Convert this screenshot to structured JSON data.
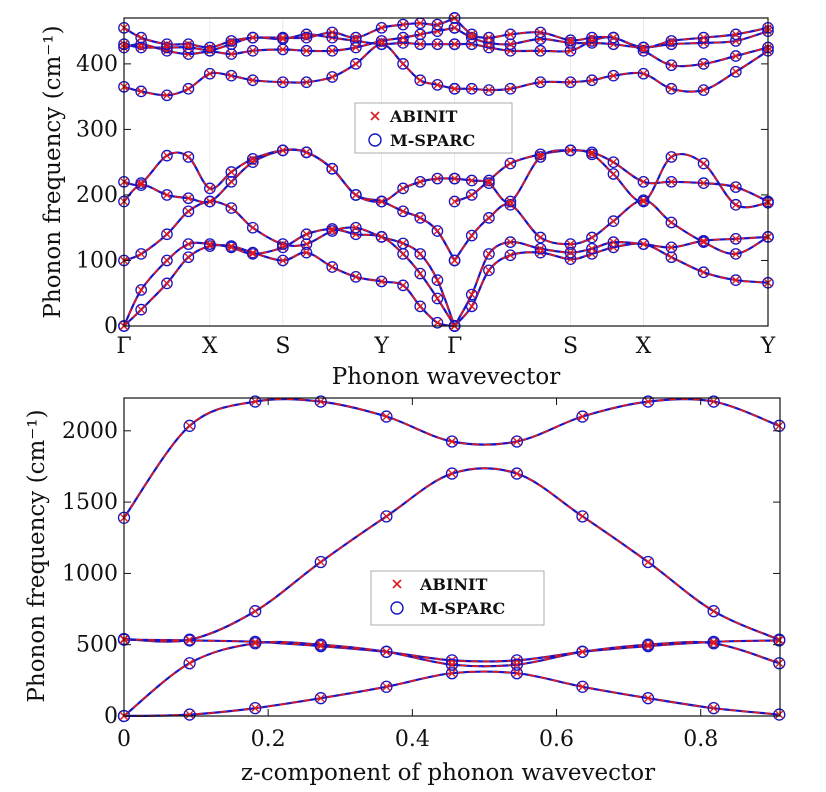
{
  "chart_data": [
    {
      "type": "line",
      "ylabel": "Phonon frequency (cm⁻¹)",
      "xlabel": "Phonon wavevector",
      "ylim": [
        0,
        470
      ],
      "y_ticks": [
        0,
        100,
        200,
        300,
        400
      ],
      "x_tick_labels": [
        "Γ",
        "X",
        "S",
        "Y",
        "Γ",
        "S",
        "X",
        "Y"
      ],
      "x_tick_positions": [
        0,
        0.4,
        0.74,
        1.2,
        1.54,
        2.08,
        2.42,
        3.0
      ],
      "xlim": [
        0,
        3.0
      ],
      "legend": {
        "entries": [
          "ABINIT",
          "M-SPARC"
        ],
        "placement": "center"
      },
      "colors": {
        "abinit": "#e0191b",
        "msparc": "#1414c8"
      },
      "series": [
        {
          "x": [
            0,
            0.08,
            0.2,
            0.3,
            0.4,
            0.5,
            0.6,
            0.74,
            0.85,
            0.97,
            1.08,
            1.2,
            1.3,
            1.38,
            1.46,
            1.54
          ],
          "values": [
            0,
            25,
            65,
            105,
            122,
            122,
            112,
            100,
            112,
            90,
            75,
            68,
            62,
            30,
            5,
            0
          ]
        },
        {
          "x": [
            0,
            0.08,
            0.2,
            0.3,
            0.4,
            0.5,
            0.6,
            0.74,
            0.85,
            0.97,
            1.08,
            1.2,
            1.3,
            1.38,
            1.46,
            1.54
          ],
          "values": [
            0,
            55,
            100,
            125,
            125,
            120,
            110,
            120,
            140,
            148,
            140,
            136,
            110,
            80,
            42,
            0
          ]
        },
        {
          "x": [
            0,
            0.08,
            0.2,
            0.3,
            0.4,
            0.5,
            0.6,
            0.74,
            0.85,
            0.97,
            1.08,
            1.2,
            1.3,
            1.38,
            1.46,
            1.54
          ],
          "values": [
            100,
            110,
            140,
            175,
            190,
            180,
            150,
            125,
            125,
            145,
            150,
            136,
            126,
            110,
            70,
            0
          ]
        },
        {
          "x": [
            0,
            0.08,
            0.2,
            0.3,
            0.4,
            0.5,
            0.6,
            0.74,
            0.85,
            0.97,
            1.08,
            1.2,
            1.3,
            1.38,
            1.46,
            1.54
          ],
          "values": [
            190,
            215,
            200,
            195,
            190,
            220,
            250,
            268,
            265,
            240,
            200,
            190,
            175,
            165,
            145,
            100
          ]
        },
        {
          "x": [
            0,
            0.08,
            0.2,
            0.3,
            0.4,
            0.5,
            0.6,
            0.74,
            0.85,
            0.97,
            1.08,
            1.2,
            1.3,
            1.38,
            1.46,
            1.54
          ],
          "values": [
            220,
            218,
            260,
            258,
            210,
            235,
            255,
            268,
            265,
            240,
            200,
            190,
            210,
            220,
            225,
            225
          ]
        },
        {
          "x": [
            1.54,
            1.62,
            1.7,
            1.8,
            1.94,
            2.08,
            2.18,
            2.28,
            2.42,
            2.55,
            2.7,
            2.85,
            3.0
          ],
          "values": [
            0,
            30,
            85,
            108,
            112,
            102,
            110,
            120,
            125,
            105,
            82,
            70,
            66
          ]
        },
        {
          "x": [
            1.54,
            1.62,
            1.7,
            1.8,
            1.94,
            2.08,
            2.18,
            2.28,
            2.42,
            2.55,
            2.7,
            2.85,
            3.0
          ],
          "values": [
            0,
            48,
            110,
            128,
            118,
            112,
            118,
            128,
            125,
            120,
            130,
            133,
            136
          ]
        },
        {
          "x": [
            1.54,
            1.62,
            1.7,
            1.8,
            1.94,
            2.08,
            2.18,
            2.28,
            2.42,
            2.55,
            2.7,
            2.85,
            3.0
          ],
          "values": [
            100,
            138,
            165,
            185,
            135,
            125,
            135,
            160,
            192,
            158,
            128,
            110,
            136
          ]
        },
        {
          "x": [
            1.54,
            1.62,
            1.7,
            1.8,
            1.94,
            2.08,
            2.18,
            2.28,
            2.42,
            2.55,
            2.7,
            2.85,
            3.0
          ],
          "values": [
            190,
            200,
            222,
            248,
            262,
            268,
            265,
            250,
            220,
            220,
            218,
            212,
            190
          ]
        },
        {
          "x": [
            1.54,
            1.62,
            1.7,
            1.8,
            1.94,
            2.08,
            2.18,
            2.28,
            2.42,
            2.55,
            2.7,
            2.85,
            3.0
          ],
          "values": [
            225,
            222,
            218,
            190,
            258,
            268,
            262,
            232,
            190,
            258,
            248,
            185,
            188
          ]
        },
        {
          "x": [
            0,
            0.08,
            0.2,
            0.3,
            0.4,
            0.5,
            0.6,
            0.74,
            0.85,
            0.97,
            1.08,
            1.2,
            1.3,
            1.38,
            1.46,
            1.54
          ],
          "values": [
            365,
            358,
            352,
            362,
            385,
            382,
            375,
            372,
            372,
            380,
            400,
            430,
            400,
            375,
            368,
            362
          ]
        },
        {
          "x": [
            0,
            0.08,
            0.2,
            0.3,
            0.4,
            0.5,
            0.6,
            0.74,
            0.85,
            0.97,
            1.08,
            1.2,
            1.3,
            1.38,
            1.46,
            1.54
          ],
          "values": [
            425,
            430,
            420,
            415,
            420,
            430,
            440,
            438,
            445,
            440,
            435,
            430,
            432,
            430,
            430,
            430
          ]
        },
        {
          "x": [
            0,
            0.08,
            0.2,
            0.3,
            0.4,
            0.5,
            0.6,
            0.74,
            0.85,
            0.97,
            1.08,
            1.2,
            1.3,
            1.38,
            1.46,
            1.54
          ],
          "values": [
            430,
            425,
            425,
            425,
            420,
            415,
            420,
            422,
            420,
            420,
            425,
            435,
            440,
            445,
            450,
            455
          ]
        },
        {
          "x": [
            0,
            0.08,
            0.2,
            0.3,
            0.4,
            0.5,
            0.6,
            0.74,
            0.85,
            0.97,
            1.08,
            1.2,
            1.3,
            1.38,
            1.46,
            1.54
          ],
          "values": [
            455,
            440,
            430,
            430,
            425,
            435,
            440,
            440,
            440,
            448,
            440,
            455,
            460,
            462,
            460,
            470
          ]
        },
        {
          "x": [
            1.54,
            1.62,
            1.7,
            1.8,
            1.94,
            2.08,
            2.18,
            2.28,
            2.42,
            2.55,
            2.7,
            2.85,
            3.0
          ],
          "values": [
            362,
            362,
            360,
            362,
            372,
            372,
            375,
            382,
            385,
            362,
            360,
            388,
            420
          ]
        },
        {
          "x": [
            1.54,
            1.62,
            1.7,
            1.8,
            1.94,
            2.08,
            2.18,
            2.28,
            2.42,
            2.55,
            2.7,
            2.85,
            3.0
          ],
          "values": [
            430,
            430,
            425,
            420,
            420,
            420,
            435,
            440,
            420,
            398,
            400,
            412,
            425
          ]
        },
        {
          "x": [
            1.54,
            1.62,
            1.7,
            1.8,
            1.94,
            2.08,
            2.18,
            2.28,
            2.42,
            2.55,
            2.7,
            2.85,
            3.0
          ],
          "values": [
            455,
            440,
            432,
            430,
            438,
            432,
            432,
            430,
            425,
            430,
            432,
            435,
            450
          ]
        },
        {
          "x": [
            1.54,
            1.62,
            1.7,
            1.8,
            1.94,
            2.08,
            2.18,
            2.28,
            2.42,
            2.55,
            2.7,
            2.85,
            3.0
          ],
          "values": [
            470,
            445,
            440,
            445,
            448,
            436,
            440,
            440,
            425,
            435,
            440,
            445,
            455
          ]
        }
      ]
    },
    {
      "type": "line",
      "ylabel": "Phonon frequency (cm⁻¹)",
      "xlabel": "z-component of phonon wavevector",
      "ylim": [
        0,
        2230
      ],
      "xlim": [
        0,
        0.91
      ],
      "y_ticks": [
        0,
        500,
        1000,
        1500,
        2000
      ],
      "x_ticks": [
        0,
        0.2,
        0.4,
        0.6,
        0.8
      ],
      "legend": {
        "entries": [
          "ABINIT",
          "M-SPARC"
        ],
        "placement": "center"
      },
      "colors": {
        "abinit": "#e0191b",
        "msparc": "#1414c8"
      },
      "series": [
        {
          "x": [
            0,
            0.091,
            0.182,
            0.273,
            0.364,
            0.455,
            0.545,
            0.636,
            0.727,
            0.818,
            0.909
          ],
          "values": [
            1390,
            2035,
            2205,
            2205,
            2100,
            1925,
            1925,
            2100,
            2205,
            2205,
            2035
          ]
        },
        {
          "x": [
            0,
            0.091,
            0.182,
            0.273,
            0.364,
            0.455,
            0.545,
            0.636,
            0.727,
            0.818,
            0.909
          ],
          "values": [
            540,
            535,
            735,
            1080,
            1400,
            1700,
            1700,
            1400,
            1080,
            735,
            535
          ]
        },
        {
          "x": [
            0,
            0.091,
            0.182,
            0.273,
            0.364,
            0.455,
            0.545,
            0.636,
            0.727,
            0.818,
            0.909
          ],
          "values": [
            535,
            530,
            520,
            490,
            450,
            390,
            390,
            450,
            490,
            520,
            530
          ]
        },
        {
          "x": [
            0,
            0.091,
            0.182,
            0.273,
            0.364,
            0.455,
            0.545,
            0.636,
            0.727,
            0.818,
            0.909
          ],
          "values": [
            0,
            370,
            510,
            500,
            450,
            360,
            360,
            450,
            500,
            510,
            370
          ]
        },
        {
          "x": [
            0,
            0.091,
            0.182,
            0.273,
            0.364,
            0.455,
            0.545,
            0.636,
            0.727,
            0.818,
            0.909
          ],
          "values": [
            0,
            10,
            55,
            125,
            205,
            300,
            300,
            205,
            125,
            55,
            10
          ]
        }
      ]
    }
  ]
}
